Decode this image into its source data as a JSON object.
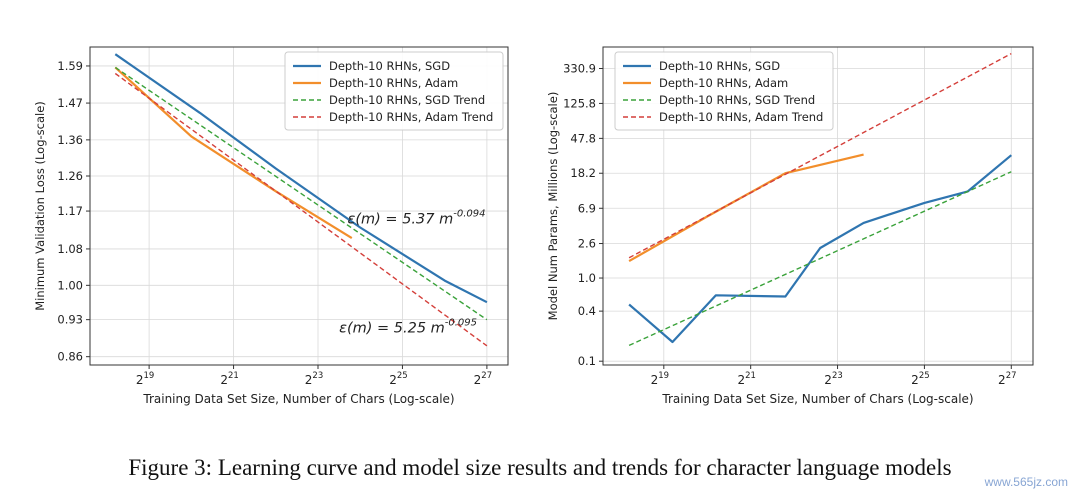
{
  "caption": "Figure 3: Learning curve and model size results and trends for character language models",
  "watermark": "www.565jz.com",
  "colors": {
    "sgd": "#2f75b0",
    "adam": "#f28e2b",
    "sgd_trend": "#3aa23a",
    "adam_trend": "#d43f3a"
  },
  "chart_data": [
    {
      "type": "line",
      "xlabel": "Training Data Set Size, Number of Chars (Log-scale)",
      "ylabel": "Minimum Validation Loss (Log-scale)",
      "x_scale": "log2",
      "y_scale": "log",
      "xlim_log2": [
        17.6,
        27.5
      ],
      "ylim": [
        0.845,
        1.655
      ],
      "x_tick_exponents": [
        19,
        21,
        23,
        25,
        27
      ],
      "x_tick_base": "2",
      "y_ticks": [
        "0.86",
        "0.93",
        "1.00",
        "1.08",
        "1.17",
        "1.26",
        "1.36",
        "1.47",
        "1.59"
      ],
      "grid": true,
      "legend_position": "top-right",
      "series": [
        {
          "name": "Depth-10 RHNs, SGD",
          "key": "sgd",
          "dash": false,
          "x_log2": [
            18.2,
            20.2,
            22.0,
            24.0,
            26.0,
            27.0
          ],
          "y": [
            1.63,
            1.44,
            1.28,
            1.13,
            1.01,
            0.965
          ]
        },
        {
          "name": "Depth-10 RHNs, Adam",
          "key": "adam",
          "dash": false,
          "x_log2": [
            18.2,
            20.0,
            22.0,
            23.8
          ],
          "y": [
            1.585,
            1.37,
            1.22,
            1.105
          ]
        },
        {
          "name": "Depth-10 RHNs, SGD Trend",
          "key": "sgd_trend",
          "dash": true,
          "x_log2": [
            18.2,
            27.0
          ],
          "y": [
            1.585,
            0.93
          ]
        },
        {
          "name": "Depth-10 RHNs, Adam Trend",
          "key": "adam_trend",
          "dash": true,
          "x_log2": [
            18.2,
            27.0
          ],
          "y": [
            1.565,
            0.88
          ]
        }
      ],
      "annotations": [
        {
          "prefix": "ε(m) = 5.37 m",
          "exp": "-0.094",
          "x_log2": 23.7,
          "y": 1.14
        },
        {
          "prefix": "ε(m) = 5.25 m",
          "exp": "-0.095",
          "x_log2": 23.5,
          "y": 0.905
        }
      ]
    },
    {
      "type": "line",
      "xlabel": "Training Data Set Size, Number of Chars (Log-scale)",
      "ylabel": "Model Num Params, Millions (Log-scale)",
      "x_scale": "log2",
      "y_scale": "log",
      "xlim_log2": [
        17.6,
        27.5
      ],
      "ylim": [
        0.09,
        600
      ],
      "x_tick_exponents": [
        19,
        21,
        23,
        25,
        27
      ],
      "x_tick_base": "2",
      "y_ticks": [
        "0.1",
        "0.4",
        "1.0",
        "2.6",
        "6.9",
        "18.2",
        "47.8",
        "125.8",
        "330.9"
      ],
      "grid": true,
      "legend_position": "top-left",
      "series": [
        {
          "name": "Depth-10 RHNs, SGD",
          "key": "sgd",
          "dash": false,
          "x_log2": [
            18.2,
            19.2,
            20.2,
            21.8,
            22.6,
            23.6,
            25.0,
            26.0,
            27.0
          ],
          "y": [
            0.48,
            0.17,
            0.62,
            0.6,
            2.3,
            4.6,
            8.0,
            11.0,
            30.0
          ]
        },
        {
          "name": "Depth-10 RHNs, Adam",
          "key": "adam",
          "dash": false,
          "x_log2": [
            18.2,
            20.0,
            21.8,
            23.6
          ],
          "y": [
            1.6,
            5.5,
            18.2,
            30.5
          ]
        },
        {
          "name": "Depth-10 RHNs, SGD Trend",
          "key": "sgd_trend",
          "dash": true,
          "x_log2": [
            18.2,
            27.0
          ],
          "y": [
            0.155,
            19.0
          ]
        },
        {
          "name": "Depth-10 RHNs, Adam Trend",
          "key": "adam_trend",
          "dash": true,
          "x_log2": [
            18.2,
            27.0
          ],
          "y": [
            1.75,
            500.0
          ]
        }
      ],
      "annotations": []
    }
  ]
}
